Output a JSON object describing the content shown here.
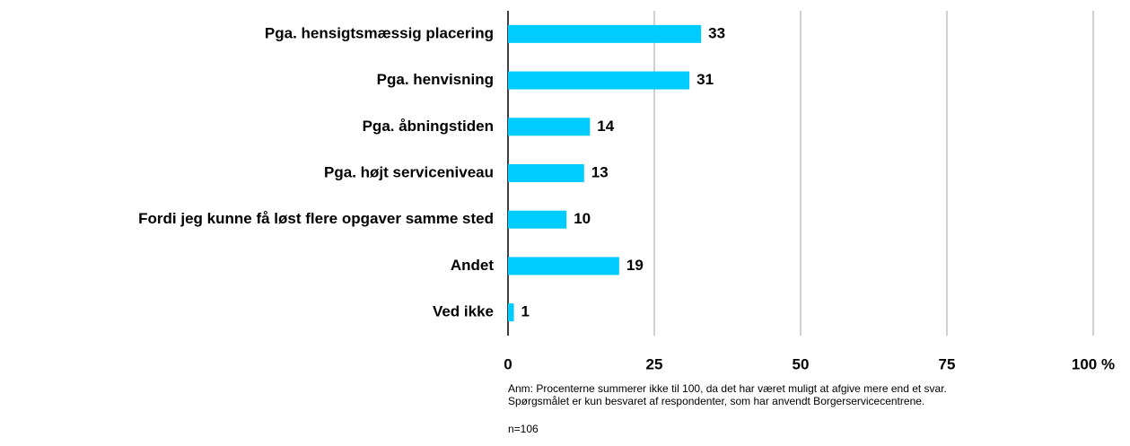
{
  "chart_data": {
    "type": "bar",
    "orientation": "horizontal",
    "categories": [
      "Pga. hensigtsmæssig placering",
      "Pga. henvisning",
      "Pga. åbningstiden",
      "Pga. højt serviceniveau",
      "Fordi jeg kunne få løst flere opgaver samme sted",
      "Andet",
      "Ved ikke"
    ],
    "values": [
      33,
      31,
      14,
      13,
      10,
      19,
      1
    ],
    "color": "#00ccff",
    "xlim": [
      0,
      100
    ],
    "xticks": [
      0,
      25,
      50,
      75,
      {
        "value": 100,
        "label": "100 %"
      }
    ],
    "grid": true,
    "notes": [
      "Anm: Procenterne summerer ikke til 100, da det har været muligt at afgive mere end et svar.",
      "Spørgsmålet er kun besvaret af respondenter, som har anvendt Borgerservicecentrene."
    ],
    "n_label": "n=106"
  }
}
